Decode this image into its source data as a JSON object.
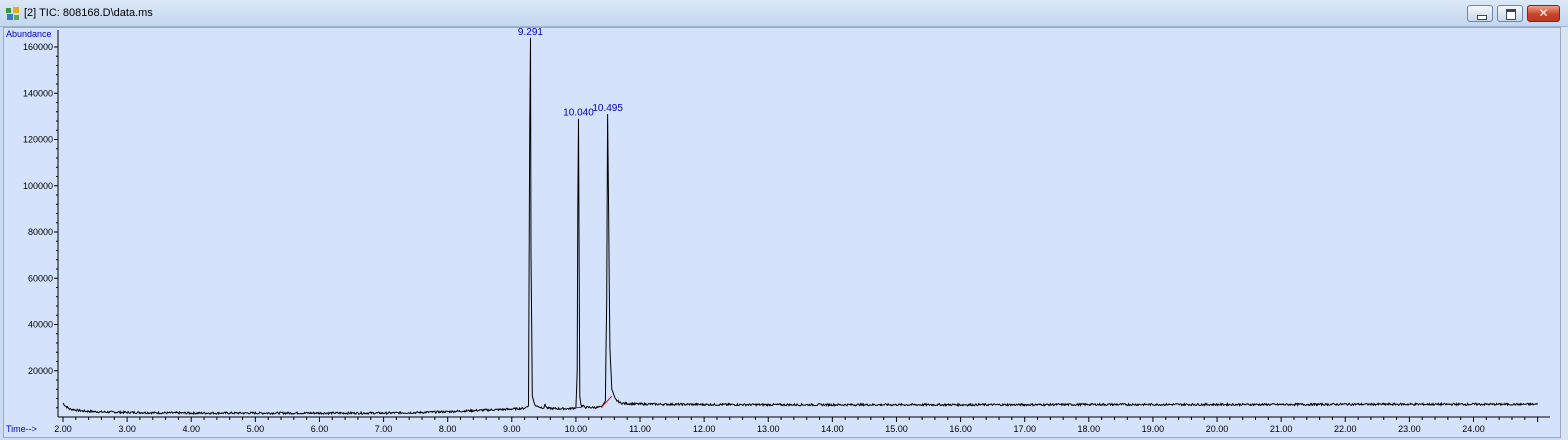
{
  "window": {
    "title": "[2] TIC: 808168.D\\data.ms",
    "close_glyph": "✕",
    "icons": [
      "app-icon",
      "minimize-icon",
      "maximize-icon",
      "close-icon"
    ]
  },
  "colors": {
    "plot_bg": "#d4e2fb",
    "trace": "#000000",
    "axis": "#000000",
    "peak_label": "#0000cc",
    "axis_label": "#0000cc",
    "baseline_marker": "#dd0000"
  },
  "chart_data": {
    "type": "line",
    "title": "",
    "ylabel": "Abundance",
    "xlabel": "Time-->",
    "xlim": [
      1.95,
      25.15
    ],
    "ylim": [
      0,
      170000
    ],
    "x_ticks": [
      "2.00",
      "3.00",
      "4.00",
      "5.00",
      "6.00",
      "7.00",
      "8.00",
      "9.00",
      "10.00",
      "11.00",
      "12.00",
      "13.00",
      "14.00",
      "15.00",
      "16.00",
      "17.00",
      "18.00",
      "19.00",
      "20.00",
      "21.00",
      "22.00",
      "23.00",
      "24.00"
    ],
    "y_ticks": [
      "20000",
      "40000",
      "60000",
      "80000",
      "100000",
      "120000",
      "140000",
      "160000"
    ],
    "peak_labels": [
      {
        "label": "9.291",
        "x": 9.291,
        "y": 164000
      },
      {
        "label": "10.040",
        "x": 10.04,
        "y": 129000
      },
      {
        "label": "10.495",
        "x": 10.495,
        "y": 131000
      }
    ],
    "series": [
      {
        "x": [
          2.0,
          2.03,
          2.1,
          2.3,
          2.6,
          3.0,
          3.5,
          4.0,
          5.0,
          6.0,
          7.0,
          7.5,
          8.0,
          8.5,
          8.9,
          9.1,
          9.2,
          9.26,
          9.28,
          9.291,
          9.3,
          9.32,
          9.36,
          9.45,
          9.5,
          9.52,
          9.55,
          9.7,
          9.9,
          10.0,
          10.02,
          10.03,
          10.04,
          10.05,
          10.06,
          10.08,
          10.15,
          10.3,
          10.4,
          10.46,
          10.48,
          10.495,
          10.51,
          10.53,
          10.56,
          10.62,
          10.7,
          10.8,
          11.0,
          12.0,
          13.0,
          14.0,
          15.0,
          16.0,
          17.0,
          18.0,
          19.0,
          20.0,
          21.0,
          22.0,
          23.0,
          24.0,
          25.0
        ],
        "y": [
          6000,
          5000,
          3500,
          2600,
          2200,
          2000,
          1800,
          1700,
          1700,
          1700,
          1700,
          1900,
          2300,
          2900,
          3300,
          3600,
          3800,
          5000,
          123000,
          164000,
          70000,
          9000,
          5000,
          4200,
          4000,
          5500,
          3800,
          3600,
          3600,
          4000,
          20000,
          91000,
          129000,
          70000,
          9000,
          5000,
          4200,
          4100,
          4300,
          7000,
          50000,
          131000,
          90000,
          30000,
          12000,
          7500,
          6000,
          5800,
          5600,
          5400,
          5300,
          5300,
          5300,
          5300,
          5300,
          5400,
          5400,
          5400,
          5400,
          5500,
          5500,
          5500,
          5500
        ]
      }
    ]
  }
}
